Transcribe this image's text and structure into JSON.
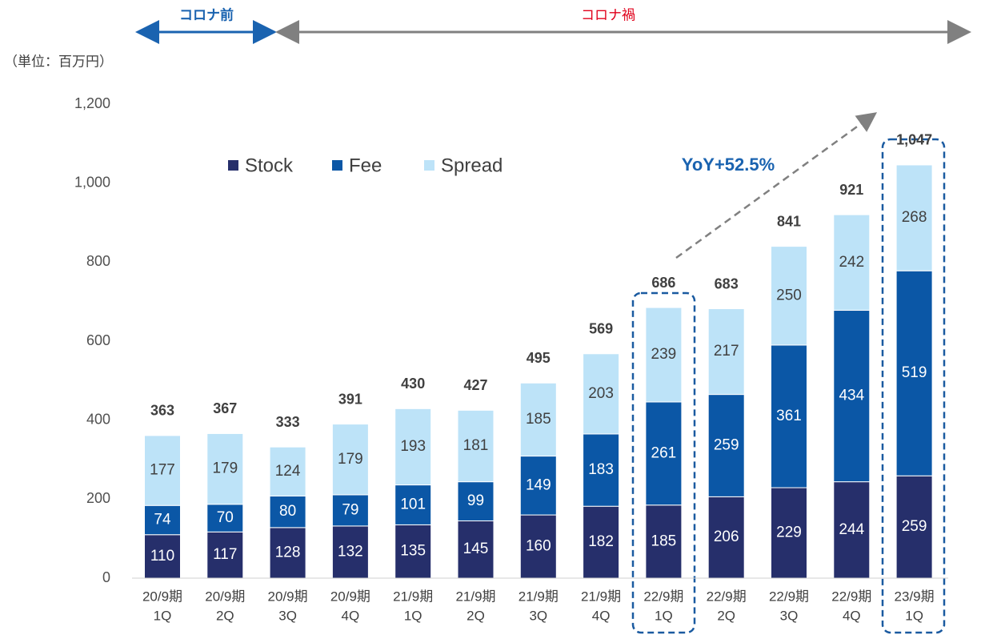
{
  "chart_data": {
    "type": "stacked_bar",
    "unit_label": "（単位：百万円）",
    "period_labels": [
      "コロナ前",
      "コロナ禍"
    ],
    "annotation": "YoY+52.5%",
    "categories": [
      [
        "20/9期",
        "1Q"
      ],
      [
        "20/9期",
        "2Q"
      ],
      [
        "20/9期",
        "3Q"
      ],
      [
        "20/9期",
        "4Q"
      ],
      [
        "21/9期",
        "1Q"
      ],
      [
        "21/9期",
        "2Q"
      ],
      [
        "21/9期",
        "3Q"
      ],
      [
        "21/9期",
        "4Q"
      ],
      [
        "22/9期",
        "1Q"
      ],
      [
        "22/9期",
        "2Q"
      ],
      [
        "22/9期",
        "3Q"
      ],
      [
        "22/9期",
        "4Q"
      ],
      [
        "23/9期",
        "1Q"
      ]
    ],
    "series": [
      {
        "name": "Stock",
        "color": "#262f6b",
        "label_color": "#ffffff",
        "values": [
          110,
          117,
          128,
          132,
          135,
          145,
          160,
          182,
          185,
          206,
          229,
          244,
          259
        ]
      },
      {
        "name": "Fee",
        "color": "#0b57a6",
        "label_color": "#ffffff",
        "values": [
          74,
          70,
          80,
          79,
          101,
          99,
          149,
          183,
          261,
          259,
          361,
          434,
          519
        ]
      },
      {
        "name": "Spread",
        "color": "#bde3f8",
        "label_color": "#404040",
        "values": [
          177,
          179,
          124,
          179,
          193,
          181,
          185,
          203,
          239,
          217,
          250,
          242,
          268
        ]
      }
    ],
    "totals": [
      363,
      367,
      333,
      391,
      430,
      427,
      495,
      569,
      686,
      683,
      841,
      921,
      {
        "value": 1047,
        "label": "1,047"
      }
    ],
    "ylim": [
      0,
      1200
    ],
    "yticks": [
      0,
      200,
      400,
      600,
      800,
      {
        "value": 1000,
        "label": "1,000"
      },
      {
        "value": 1200,
        "label": "1,200"
      }
    ],
    "grid": false
  }
}
